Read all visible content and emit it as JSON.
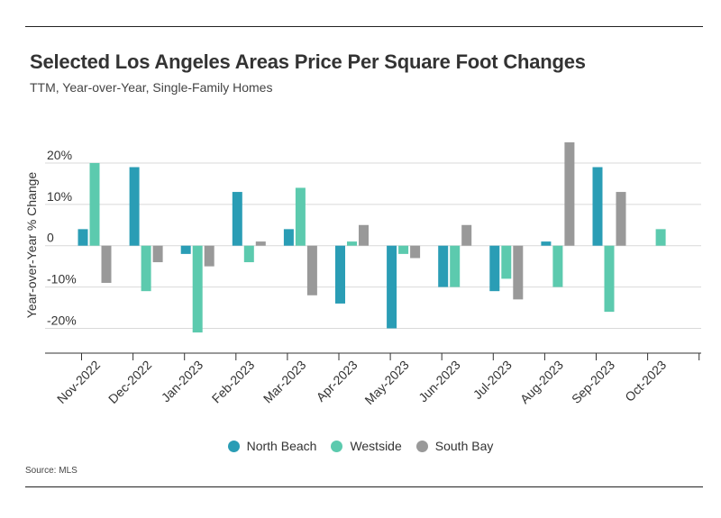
{
  "header": {
    "title": "Selected Los Angeles Areas Price Per Square Foot Changes",
    "subtitle": "TTM, Year-over-Year, Single-Family Homes"
  },
  "footer": {
    "source": "Source: MLS"
  },
  "chart_data": {
    "type": "bar",
    "title": "Selected Los Angeles Areas Price Per Square Foot Changes",
    "subtitle": "TTM, Year-over-Year, Single-Family Homes",
    "xlabel": "",
    "ylabel": "Year-over-Year % Change",
    "ylim": [
      -0.26,
      0.25
    ],
    "yticks": [
      -0.2,
      -0.1,
      0,
      0.1,
      0.2
    ],
    "ytick_labels": [
      "-20%",
      "-10%",
      "0",
      "10%",
      "20%"
    ],
    "grid": true,
    "legend_position": "bottom",
    "categories": [
      "Nov-2022",
      "Dec-2022",
      "Jan-2023",
      "Feb-2023",
      "Mar-2023",
      "Apr-2023",
      "May-2023",
      "Jun-2023",
      "Jul-2023",
      "Aug-2023",
      "Sep-2023",
      "Oct-2023"
    ],
    "series": [
      {
        "name": "North Beach",
        "color": "#2a9db5",
        "values": [
          0.04,
          0.19,
          -0.02,
          0.13,
          0.04,
          -0.14,
          -0.2,
          -0.1,
          -0.11,
          0.01,
          0.19,
          null
        ]
      },
      {
        "name": "Westside",
        "color": "#5ccaae",
        "values": [
          0.2,
          -0.11,
          -0.21,
          -0.04,
          0.14,
          0.01,
          -0.02,
          -0.1,
          -0.08,
          -0.1,
          -0.16,
          0.04
        ]
      },
      {
        "name": "South Bay",
        "color": "#999999",
        "values": [
          -0.09,
          -0.04,
          -0.05,
          0.01,
          -0.12,
          0.05,
          -0.03,
          0.05,
          -0.13,
          0.25,
          0.13,
          null
        ]
      }
    ]
  }
}
